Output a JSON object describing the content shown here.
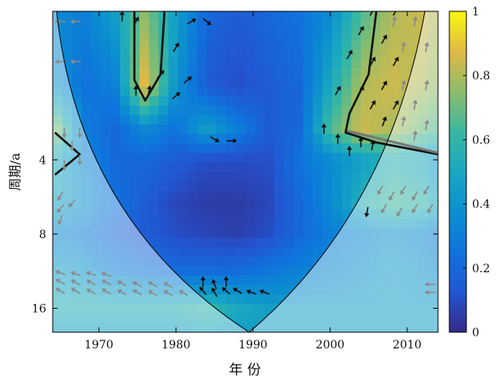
{
  "chart_data": {
    "type": "heatmap",
    "subtype": "wavelet-coherence",
    "title": "",
    "xlabel": "年 份",
    "ylabel": "周期/a",
    "xlim": [
      1964,
      2014
    ],
    "ylim_period": [
      1,
      20
    ],
    "y_scale": "log2",
    "y_reversed": true,
    "x_ticks": [
      "1970",
      "1980",
      "1990",
      "2000",
      "2010"
    ],
    "x_tick_values": [
      1970,
      1980,
      1990,
      2000,
      2010
    ],
    "y_ticks": [
      "4",
      "8",
      "16"
    ],
    "y_tick_values": [
      4,
      8,
      16
    ],
    "colorbar": {
      "min": 0,
      "max": 1,
      "ticks": [
        "0",
        "0.2",
        "0.4",
        "0.6",
        "0.8",
        "1"
      ],
      "tick_values": [
        0,
        0.2,
        0.4,
        0.6,
        0.8,
        1
      ],
      "colormap": "parula"
    },
    "cone_of_influence": {
      "left_x": 1964.5,
      "apex_x": 1989.5,
      "right_x": 2012.3,
      "apex_period": 20
    },
    "field_x": [
      1964,
      1968,
      1972,
      1976,
      1980,
      1984,
      1988,
      1992,
      1996,
      2000,
      2004,
      2008,
      2012,
      2014
    ],
    "field_y": [
      1,
      2,
      3,
      4,
      6,
      8,
      11,
      16,
      20
    ],
    "field_z": [
      [
        0.35,
        0.3,
        0.45,
        0.75,
        0.45,
        0.2,
        0.15,
        0.2,
        0.25,
        0.35,
        0.65,
        0.8,
        0.85,
        0.8
      ],
      [
        0.4,
        0.25,
        0.3,
        0.9,
        0.4,
        0.15,
        0.1,
        0.15,
        0.2,
        0.5,
        0.8,
        0.85,
        0.8,
        0.75
      ],
      [
        0.8,
        0.3,
        0.2,
        0.35,
        0.25,
        0.45,
        0.3,
        0.15,
        0.2,
        0.65,
        0.85,
        0.8,
        0.7,
        0.65
      ],
      [
        0.55,
        0.35,
        0.2,
        0.2,
        0.15,
        0.1,
        0.1,
        0.1,
        0.25,
        0.35,
        0.45,
        0.55,
        0.5,
        0.4
      ],
      [
        0.5,
        0.4,
        0.25,
        0.15,
        0.08,
        0.05,
        0.05,
        0.08,
        0.2,
        0.35,
        0.55,
        0.65,
        0.6,
        0.5
      ],
      [
        0.35,
        0.3,
        0.2,
        0.15,
        0.1,
        0.08,
        0.06,
        0.1,
        0.2,
        0.3,
        0.35,
        0.4,
        0.35,
        0.3
      ],
      [
        0.45,
        0.4,
        0.3,
        0.25,
        0.2,
        0.2,
        0.2,
        0.25,
        0.3,
        0.35,
        0.4,
        0.45,
        0.4,
        0.35
      ],
      [
        0.55,
        0.55,
        0.55,
        0.55,
        0.55,
        0.6,
        0.5,
        0.45,
        0.45,
        0.45,
        0.45,
        0.45,
        0.45,
        0.45
      ],
      [
        0.45,
        0.45,
        0.45,
        0.45,
        0.45,
        0.5,
        0.45,
        0.45,
        0.45,
        0.45,
        0.45,
        0.45,
        0.45,
        0.45
      ]
    ],
    "significance_contours": [
      {
        "note": "5% significance region",
        "points": [
          [
            1974.6,
            1
          ],
          [
            1974.6,
            1.9
          ],
          [
            1976,
            2.3
          ],
          [
            1978,
            1.8
          ],
          [
            1978.5,
            1
          ]
        ]
      },
      {
        "note": "5% significance region",
        "points": [
          [
            2006,
            1
          ],
          [
            2005,
            1.8
          ],
          [
            2002.5,
            2.6
          ],
          [
            2002,
            3.1
          ],
          [
            2006,
            3.4
          ],
          [
            2014,
            3.8
          ]
        ]
      },
      {
        "note": "5% significance region",
        "points": [
          [
            1964.3,
            3.1
          ],
          [
            1967.5,
            3.8
          ],
          [
            1964.3,
            4.6
          ]
        ]
      }
    ],
    "phase_arrows": [
      {
        "x": 1973,
        "p": 1.05,
        "angle": 90,
        "inside": true
      },
      {
        "x": 1974.8,
        "p": 1.1,
        "angle": 60,
        "inside": true
      },
      {
        "x": 1974.8,
        "p": 2.1,
        "angle": 90,
        "inside": true
      },
      {
        "x": 1976.5,
        "p": 2.1,
        "angle": 80,
        "inside": true
      },
      {
        "x": 1978,
        "p": 1.8,
        "angle": 50,
        "inside": true
      },
      {
        "x": 1980,
        "p": 2.2,
        "angle": 40,
        "inside": true
      },
      {
        "x": 1980,
        "p": 1.4,
        "angle": 60,
        "inside": true
      },
      {
        "x": 1981.5,
        "p": 1.9,
        "angle": 40,
        "inside": true
      },
      {
        "x": 1982,
        "p": 1.1,
        "angle": 30,
        "inside": true
      },
      {
        "x": 1984,
        "p": 1.1,
        "angle": -40,
        "inside": true
      },
      {
        "x": 1985,
        "p": 3.3,
        "angle": -30,
        "inside": true
      },
      {
        "x": 1987.2,
        "p": 3.35,
        "angle": 0,
        "inside": true
      },
      {
        "x": 1999.2,
        "p": 3.0,
        "angle": 90,
        "inside": true
      },
      {
        "x": 2001,
        "p": 2.1,
        "angle": 60,
        "inside": true
      },
      {
        "x": 2001,
        "p": 3.3,
        "angle": 90,
        "inside": true
      },
      {
        "x": 2002.5,
        "p": 1.5,
        "angle": 60,
        "inside": true
      },
      {
        "x": 2002.5,
        "p": 3.7,
        "angle": 90,
        "inside": true
      },
      {
        "x": 2004,
        "p": 1.2,
        "angle": 60,
        "inside": true
      },
      {
        "x": 2004,
        "p": 2.1,
        "angle": 60,
        "inside": true
      },
      {
        "x": 2004,
        "p": 3.4,
        "angle": 90,
        "inside": true
      },
      {
        "x": 2005.5,
        "p": 1.0,
        "angle": 60,
        "inside": true
      },
      {
        "x": 2005.5,
        "p": 1.6,
        "angle": 60,
        "inside": true
      },
      {
        "x": 2005.5,
        "p": 2.4,
        "angle": 60,
        "inside": true
      },
      {
        "x": 2005.5,
        "p": 3.5,
        "angle": 80,
        "inside": true
      },
      {
        "x": 2007,
        "p": 1.3,
        "angle": 60,
        "inside": true
      },
      {
        "x": 2007,
        "p": 2.0,
        "angle": 60,
        "inside": true
      },
      {
        "x": 2007,
        "p": 2.8,
        "angle": 70,
        "inside": true
      },
      {
        "x": 2008.5,
        "p": 1.0,
        "angle": 60,
        "inside": true
      },
      {
        "x": 2008.5,
        "p": 1.6,
        "angle": 60,
        "inside": true
      },
      {
        "x": 2008.5,
        "p": 2.4,
        "angle": 60,
        "inside": true
      },
      {
        "x": 2004.8,
        "p": 6.5,
        "angle": -100,
        "inside": true
      },
      {
        "x": 1983.5,
        "p": 12.5,
        "angle": 90,
        "inside": true
      },
      {
        "x": 1985,
        "p": 12.8,
        "angle": 110,
        "inside": true
      },
      {
        "x": 1986.5,
        "p": 12.5,
        "angle": 90,
        "inside": true
      },
      {
        "x": 1983.5,
        "p": 13.6,
        "angle": 130,
        "inside": true
      },
      {
        "x": 1985,
        "p": 13.8,
        "angle": 120,
        "inside": true
      },
      {
        "x": 1986.5,
        "p": 13.6,
        "angle": 140,
        "inside": true
      },
      {
        "x": 1988,
        "p": 13.6,
        "angle": 150,
        "inside": true
      },
      {
        "x": 1989.8,
        "p": 13.8,
        "angle": 160,
        "inside": true
      },
      {
        "x": 1991.5,
        "p": 13.8,
        "angle": 160,
        "inside": true
      },
      {
        "x": 1965,
        "p": 1.1,
        "angle": 180,
        "inside": false
      },
      {
        "x": 1967,
        "p": 1.1,
        "angle": 180,
        "inside": false
      },
      {
        "x": 1965,
        "p": 1.6,
        "angle": 180,
        "inside": false
      },
      {
        "x": 1967,
        "p": 1.6,
        "angle": 180,
        "inside": false
      },
      {
        "x": 1965.5,
        "p": 3.1,
        "angle": -90,
        "inside": false
      },
      {
        "x": 1966.5,
        "p": 3.5,
        "angle": -90,
        "inside": false
      },
      {
        "x": 1967.5,
        "p": 3.1,
        "angle": -90,
        "inside": false
      },
      {
        "x": 1965.5,
        "p": 4.2,
        "angle": -90,
        "inside": false
      },
      {
        "x": 1967.5,
        "p": 4.0,
        "angle": -90,
        "inside": false
      },
      {
        "x": 1965,
        "p": 5.6,
        "angle": -120,
        "inside": false
      },
      {
        "x": 1965,
        "p": 6.3,
        "angle": -130,
        "inside": false
      },
      {
        "x": 1965,
        "p": 7.0,
        "angle": -110,
        "inside": false
      },
      {
        "x": 1966.5,
        "p": 6.0,
        "angle": -130,
        "inside": false
      },
      {
        "x": 2008.3,
        "p": 1.1,
        "angle": 80,
        "inside": false
      },
      {
        "x": 2009.5,
        "p": 1.4,
        "angle": 80,
        "inside": false
      },
      {
        "x": 2011,
        "p": 1.1,
        "angle": 80,
        "inside": false
      },
      {
        "x": 2012.5,
        "p": 1.4,
        "angle": 80,
        "inside": false
      },
      {
        "x": 2009.5,
        "p": 2.0,
        "angle": 80,
        "inside": false
      },
      {
        "x": 2011,
        "p": 2.4,
        "angle": 80,
        "inside": false
      },
      {
        "x": 2012.5,
        "p": 2.0,
        "angle": 80,
        "inside": false
      },
      {
        "x": 2009.5,
        "p": 2.8,
        "angle": 80,
        "inside": false
      },
      {
        "x": 2011,
        "p": 3.2,
        "angle": 80,
        "inside": false
      },
      {
        "x": 2012.5,
        "p": 2.9,
        "angle": 80,
        "inside": false
      },
      {
        "x": 2006.5,
        "p": 5.3,
        "angle": -120,
        "inside": false
      },
      {
        "x": 2008,
        "p": 5.6,
        "angle": -120,
        "inside": false
      },
      {
        "x": 2009.5,
        "p": 5.3,
        "angle": -120,
        "inside": false
      },
      {
        "x": 2011,
        "p": 5.6,
        "angle": -120,
        "inside": false
      },
      {
        "x": 2012.5,
        "p": 5.3,
        "angle": -120,
        "inside": false
      },
      {
        "x": 2007,
        "p": 6.3,
        "angle": -120,
        "inside": false
      },
      {
        "x": 2009,
        "p": 6.5,
        "angle": -120,
        "inside": false
      },
      {
        "x": 2011,
        "p": 6.3,
        "angle": -120,
        "inside": false
      },
      {
        "x": 2013,
        "p": 6.3,
        "angle": -120,
        "inside": false
      },
      {
        "x": 1965,
        "p": 11.5,
        "angle": 160,
        "inside": false
      },
      {
        "x": 1967,
        "p": 11.6,
        "angle": 160,
        "inside": false
      },
      {
        "x": 1969,
        "p": 11.6,
        "angle": 160,
        "inside": false
      },
      {
        "x": 1971,
        "p": 11.7,
        "angle": 160,
        "inside": false
      },
      {
        "x": 1965,
        "p": 12.5,
        "angle": 150,
        "inside": false
      },
      {
        "x": 1967,
        "p": 12.6,
        "angle": 150,
        "inside": false
      },
      {
        "x": 1969,
        "p": 12.6,
        "angle": 150,
        "inside": false
      },
      {
        "x": 1971,
        "p": 12.6,
        "angle": 150,
        "inside": false
      },
      {
        "x": 1973,
        "p": 12.7,
        "angle": 150,
        "inside": false
      },
      {
        "x": 1975,
        "p": 12.8,
        "angle": 150,
        "inside": false
      },
      {
        "x": 1977,
        "p": 12.8,
        "angle": 150,
        "inside": false
      },
      {
        "x": 1979,
        "p": 12.9,
        "angle": 150,
        "inside": false
      },
      {
        "x": 1965,
        "p": 13.6,
        "angle": 150,
        "inside": false
      },
      {
        "x": 1967,
        "p": 13.6,
        "angle": 150,
        "inside": false
      },
      {
        "x": 1969,
        "p": 13.7,
        "angle": 150,
        "inside": false
      },
      {
        "x": 1971,
        "p": 13.7,
        "angle": 150,
        "inside": false
      },
      {
        "x": 1973,
        "p": 13.8,
        "angle": 150,
        "inside": false
      },
      {
        "x": 1975,
        "p": 13.8,
        "angle": 150,
        "inside": false
      },
      {
        "x": 1977,
        "p": 13.9,
        "angle": 150,
        "inside": false
      },
      {
        "x": 1979,
        "p": 13.9,
        "angle": 150,
        "inside": false
      },
      {
        "x": 1981,
        "p": 13.9,
        "angle": 150,
        "inside": false
      },
      {
        "x": 2013,
        "p": 12.8,
        "angle": 180,
        "inside": false
      },
      {
        "x": 2013,
        "p": 13.8,
        "angle": 180,
        "inside": false
      }
    ]
  }
}
